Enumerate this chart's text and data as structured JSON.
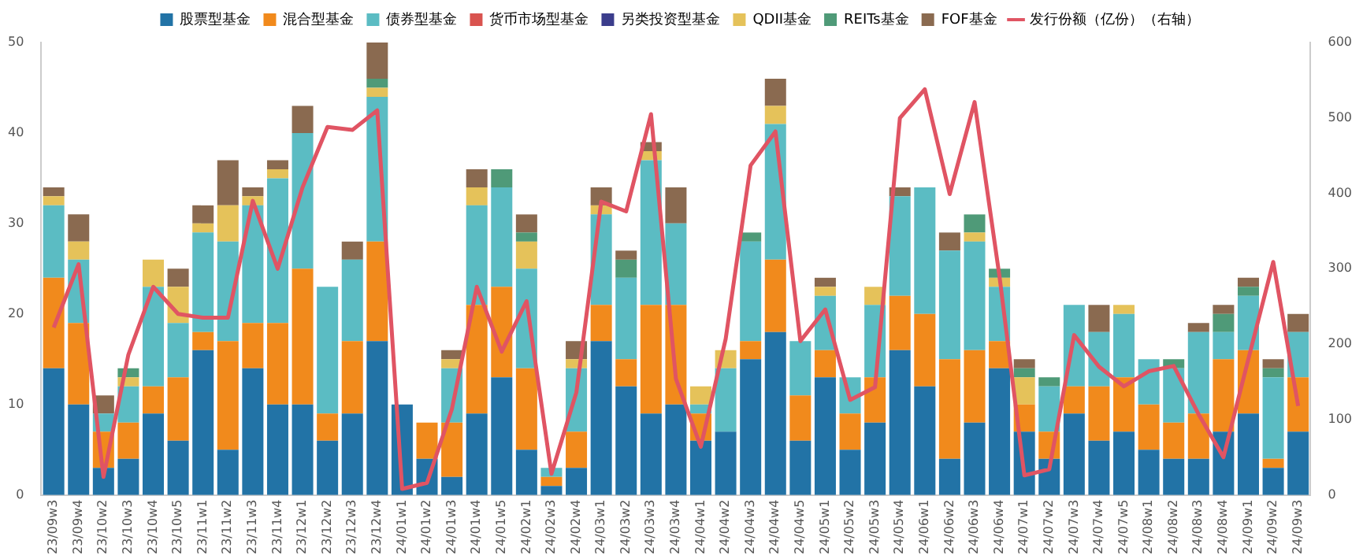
{
  "chart_data": {
    "type": "bar",
    "stacked": true,
    "legend": "top",
    "grid": false,
    "marker": "none",
    "categories": [
      "23/09w3",
      "23/09w4",
      "23/10w2",
      "23/10w3",
      "23/10w4",
      "23/10w5",
      "23/11w1",
      "23/11w2",
      "23/11w3",
      "23/11w4",
      "23/12w1",
      "23/12w2",
      "23/12w3",
      "23/12w4",
      "24/01w1",
      "24/01w2",
      "24/01w3",
      "24/01w4",
      "24/01w5",
      "24/02w1",
      "24/02w3",
      "24/02w4",
      "24/03w1",
      "24/03w2",
      "24/03w3",
      "24/03w4",
      "24/04w1",
      "24/04w2",
      "24/04w3",
      "24/04w4",
      "24/04w5",
      "24/05w1",
      "24/05w2",
      "24/05w3",
      "24/05w4",
      "24/06w1",
      "24/06w2",
      "24/06w3",
      "24/06w4",
      "24/07w1",
      "24/07w2",
      "24/07w3",
      "24/07w4",
      "24/07w5",
      "24/08w1",
      "24/08w2",
      "24/08w3",
      "24/08w4",
      "24/09w1",
      "24/09w2",
      "24/09w3"
    ],
    "ylim": [
      0,
      50
    ],
    "yticks": [
      0,
      10,
      20,
      30,
      40,
      50
    ],
    "y2lim": [
      0,
      600
    ],
    "y2ticks": [
      0,
      100,
      200,
      300,
      400,
      500,
      600
    ],
    "series": [
      {
        "name": "股票型基金",
        "color": "#2273a6",
        "values": [
          14,
          10,
          3,
          4,
          9,
          6,
          16,
          5,
          14,
          10,
          10,
          6,
          9,
          17,
          10,
          4,
          2,
          9,
          13,
          5,
          1,
          3,
          17,
          12,
          9,
          10,
          6,
          7,
          15,
          18,
          6,
          13,
          5,
          8,
          16,
          12,
          4,
          8,
          14,
          7,
          4,
          9,
          6,
          7,
          5,
          4,
          4,
          7,
          9,
          3,
          7
        ]
      },
      {
        "name": "混合型基金",
        "color": "#f18a1c",
        "values": [
          10,
          9,
          4,
          4,
          3,
          7,
          2,
          12,
          5,
          9,
          15,
          3,
          8,
          11,
          0,
          4,
          6,
          12,
          10,
          9,
          1,
          4,
          4,
          3,
          12,
          11,
          3,
          0,
          2,
          8,
          5,
          3,
          4,
          5,
          6,
          8,
          11,
          8,
          3,
          3,
          3,
          3,
          6,
          6,
          5,
          4,
          5,
          8,
          7,
          1,
          6
        ]
      },
      {
        "name": "债券型基金",
        "color": "#5bbcc3",
        "values": [
          8,
          7,
          2,
          4,
          11,
          6,
          11,
          11,
          13,
          16,
          15,
          14,
          9,
          16,
          0,
          0,
          6,
          11,
          11,
          11,
          1,
          7,
          10,
          9,
          16,
          9,
          1,
          7,
          11,
          15,
          6,
          6,
          4,
          8,
          11,
          14,
          12,
          12,
          6,
          0,
          5,
          9,
          6,
          7,
          5,
          6,
          9,
          3,
          6,
          9,
          5
        ]
      },
      {
        "name": "货币市场型基金",
        "color": "#d9534f",
        "values": [
          0,
          0,
          0,
          0,
          0,
          0,
          0,
          0,
          0,
          0,
          0,
          0,
          0,
          0,
          0,
          0,
          0,
          0,
          0,
          0,
          0,
          0,
          0,
          0,
          0,
          0,
          0,
          0,
          0,
          0,
          0,
          0,
          0,
          0,
          0,
          0,
          0,
          0,
          0,
          0,
          0,
          0,
          0,
          0,
          0,
          0,
          0,
          0,
          0,
          0,
          0
        ]
      },
      {
        "name": "另类投资型基金",
        "color": "#3b3d8c",
        "values": [
          0,
          0,
          0,
          0,
          0,
          0,
          0,
          0,
          0,
          0,
          0,
          0,
          0,
          0,
          0,
          0,
          0,
          0,
          0,
          0,
          0,
          0,
          0,
          0,
          0,
          0,
          0,
          0,
          0,
          0,
          0,
          0,
          0,
          0,
          0,
          0,
          0,
          0,
          0,
          0,
          0,
          0,
          0,
          0,
          0,
          0,
          0,
          0,
          0,
          0,
          0
        ]
      },
      {
        "name": "QDII基金",
        "color": "#e5c25a",
        "values": [
          1,
          2,
          0,
          1,
          3,
          4,
          1,
          4,
          1,
          1,
          0,
          0,
          0,
          1,
          0,
          0,
          1,
          2,
          0,
          3,
          0,
          1,
          1,
          0,
          1,
          0,
          2,
          2,
          0,
          2,
          0,
          1,
          0,
          2,
          0,
          0,
          0,
          1,
          1,
          3,
          0,
          0,
          0,
          1,
          0,
          0,
          0,
          0,
          0,
          0,
          0
        ]
      },
      {
        "name": "REITs基金",
        "color": "#4f9a78",
        "values": [
          0,
          0,
          0,
          1,
          0,
          0,
          0,
          0,
          0,
          0,
          0,
          0,
          0,
          1,
          0,
          0,
          0,
          0,
          2,
          1,
          0,
          0,
          0,
          2,
          0,
          0,
          0,
          0,
          1,
          0,
          0,
          0,
          0,
          0,
          0,
          0,
          0,
          2,
          1,
          1,
          1,
          0,
          0,
          0,
          0,
          1,
          0,
          2,
          1,
          1,
          0
        ]
      },
      {
        "name": "FOF基金",
        "color": "#8a6a50",
        "values": [
          1,
          3,
          2,
          0,
          0,
          2,
          2,
          5,
          1,
          1,
          3,
          0,
          2,
          4,
          0,
          0,
          1,
          2,
          0,
          2,
          0,
          2,
          2,
          1,
          1,
          4,
          0,
          0,
          0,
          3,
          0,
          1,
          0,
          0,
          1,
          0,
          2,
          0,
          0,
          1,
          0,
          0,
          3,
          0,
          0,
          0,
          1,
          1,
          1,
          1,
          2
        ]
      },
      {
        "name": "发行份额（亿份）（右轴）",
        "type": "line",
        "axis": "y2",
        "color": "#e05463",
        "values": [
          222,
          306,
          24,
          186,
          276,
          240,
          235,
          235,
          390,
          300,
          408,
          488,
          484,
          510,
          8,
          16,
          114,
          276,
          190,
          257,
          28,
          136,
          389,
          376,
          505,
          154,
          64,
          207,
          437,
          482,
          204,
          246,
          126,
          143,
          500,
          538,
          399,
          521,
          290,
          26,
          34,
          212,
          170,
          144,
          164,
          171,
          107,
          50,
          180,
          309,
          118
        ]
      }
    ]
  }
}
